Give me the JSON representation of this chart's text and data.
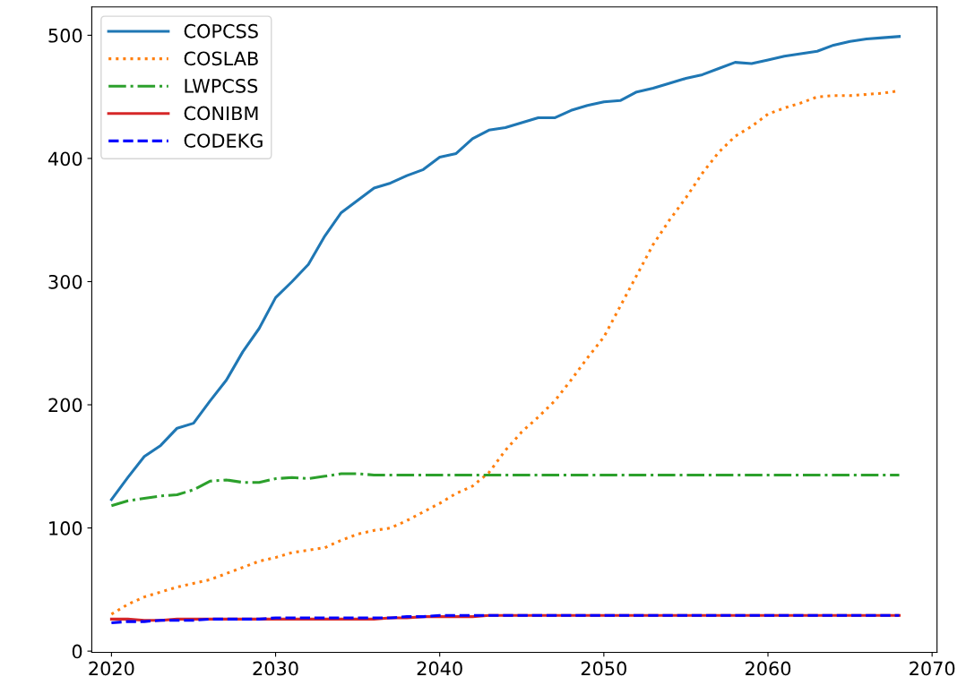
{
  "chart_data": {
    "type": "line",
    "x": [
      2020,
      2021,
      2022,
      2023,
      2024,
      2025,
      2026,
      2027,
      2028,
      2029,
      2030,
      2031,
      2032,
      2033,
      2034,
      2035,
      2036,
      2037,
      2038,
      2039,
      2040,
      2041,
      2042,
      2043,
      2044,
      2045,
      2046,
      2047,
      2048,
      2049,
      2050,
      2051,
      2052,
      2053,
      2054,
      2055,
      2056,
      2057,
      2058,
      2059,
      2060,
      2061,
      2062,
      2063,
      2064,
      2065,
      2066,
      2067,
      2068
    ],
    "series": [
      {
        "name": "COPCSS",
        "color": "#1f77b4",
        "line_style": "solid",
        "values": [
          123,
          141,
          158,
          167,
          181,
          185,
          203,
          220,
          243,
          262,
          287,
          300,
          314,
          337,
          356,
          366,
          376,
          380,
          386,
          391,
          401,
          404,
          416,
          423,
          425,
          429,
          433,
          433,
          439,
          443,
          446,
          447,
          454,
          457,
          461,
          465,
          468,
          473,
          478,
          477,
          480,
          483,
          485,
          487,
          492,
          495,
          497,
          498,
          499
        ]
      },
      {
        "name": "COSLAB",
        "color": "#ff7f0e",
        "line_style": "dotted",
        "values": [
          30,
          38,
          44,
          48,
          52,
          55,
          58,
          63,
          68,
          73,
          76,
          80,
          82,
          84,
          90,
          95,
          98,
          100,
          106,
          113,
          120,
          128,
          134,
          145,
          163,
          178,
          190,
          203,
          220,
          238,
          255,
          280,
          305,
          330,
          350,
          368,
          388,
          405,
          418,
          426,
          436,
          441,
          445,
          450,
          451,
          451,
          452,
          453,
          455
        ]
      },
      {
        "name": "LWPCSS",
        "color": "#2ca02c",
        "line_style": "dashdot",
        "values": [
          118,
          122,
          124,
          126,
          127,
          131,
          138,
          139,
          137,
          137,
          140,
          141,
          140,
          142,
          144,
          144,
          143,
          143,
          143,
          143,
          143,
          143,
          143,
          143,
          143,
          143,
          143,
          143,
          143,
          143,
          143,
          143,
          143,
          143,
          143,
          143,
          143,
          143,
          143,
          143,
          143,
          143,
          143,
          143,
          143,
          143,
          143,
          143,
          143
        ]
      },
      {
        "name": "CONIBM",
        "color": "#d62728",
        "line_style": "solid",
        "values": [
          26,
          26,
          25,
          25,
          26,
          26,
          26,
          26,
          26,
          26,
          26,
          26,
          26,
          26,
          26,
          26,
          26,
          27,
          27,
          28,
          28,
          28,
          28,
          29,
          29,
          29,
          29,
          29,
          29,
          29,
          29,
          29,
          29,
          29,
          29,
          29,
          29,
          29,
          29,
          29,
          29,
          29,
          29,
          29,
          29,
          29,
          29,
          29,
          29
        ]
      },
      {
        "name": "CODEKG",
        "color": "#0000ff",
        "line_style": "dashed",
        "values": [
          23,
          24,
          24,
          25,
          25,
          25,
          26,
          26,
          26,
          26,
          27,
          27,
          27,
          27,
          27,
          27,
          27,
          27,
          28,
          28,
          29,
          29,
          29,
          29,
          29,
          29,
          29,
          29,
          29,
          29,
          29,
          29,
          29,
          29,
          29,
          29,
          29,
          29,
          29,
          29,
          29,
          29,
          29,
          29,
          29,
          29,
          29,
          29,
          29
        ]
      }
    ],
    "xlim": [
      2018.8,
      2070.3
    ],
    "xticks": [
      2020,
      2030,
      2040,
      2050,
      2060,
      2070
    ],
    "ylim": [
      -1,
      523
    ],
    "yticks": [
      0,
      100,
      200,
      300,
      400,
      500
    ],
    "legend": "top left",
    "grid": false
  }
}
